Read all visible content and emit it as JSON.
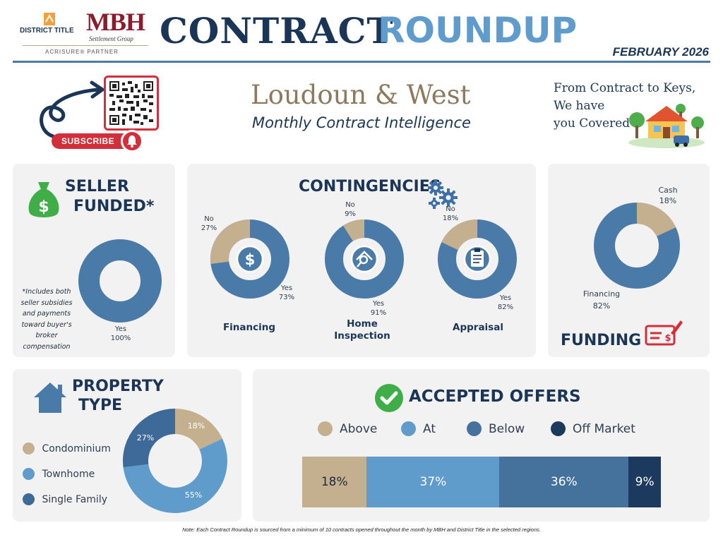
{
  "header": {
    "brand1": "DISTRICT TITLE",
    "brand2": "MBH",
    "brand2_sub": "Settlement Group",
    "partner": "ACRISURE® PARTNER",
    "title_left": "CONTRACT",
    "title_right": "ROUNDUP",
    "month": "FEBRUARY 2026"
  },
  "intro": {
    "subscribe": "SUBSCRIBE",
    "region": "Loudoun & West",
    "subtitle": "Monthly Contract Intelligence",
    "tagline": [
      "From Contract to Keys,",
      "We have",
      "you Covered"
    ]
  },
  "seller_funded": {
    "title1": "SELLER",
    "title2": "FUNDED*",
    "footnote": [
      "*Includes both",
      "seller subsidies",
      "and payments",
      "toward buyer's",
      "broker",
      "compensation"
    ],
    "label": "Yes",
    "value": "100%"
  },
  "contingencies": {
    "title": "CONTINGENCIES",
    "items": [
      {
        "name": "Financing",
        "no_label": "No",
        "no_value": "27%",
        "yes_label": "Yes",
        "yes_value": "73%",
        "no": 27
      },
      {
        "name": "Home",
        "name2": "Inspection",
        "no_label": "No",
        "no_value": "9%",
        "yes_label": "Yes",
        "yes_value": "91%",
        "no": 9
      },
      {
        "name": "Appraisal",
        "no_label": "No",
        "no_value": "18%",
        "yes_label": "Yes",
        "yes_value": "82%",
        "no": 18
      }
    ]
  },
  "funding": {
    "title": "FUNDING",
    "cash_label": "Cash",
    "cash_value": "18%",
    "fin_label": "Financing",
    "fin_value": "82%",
    "cash": 18
  },
  "property": {
    "title1": "PROPERTY",
    "title2": "TYPE",
    "legend": [
      "Condominium",
      "Townhome",
      "Single Family"
    ],
    "values": [
      "18%",
      "55%",
      "27%"
    ]
  },
  "offers": {
    "title": "ACCEPTED OFFERS",
    "legend": [
      "Above",
      "At",
      "Below",
      "Off Market"
    ],
    "values": [
      "18%",
      "37%",
      "36%",
      "9%"
    ]
  },
  "note": "Note: Each Contract Roundup is sourced from a minimum of 10 contracts opened throughout the month by MBH and District Title in the selected regions.",
  "chart_data": [
    {
      "type": "pie",
      "title": "SELLER FUNDED*",
      "categories": [
        "Yes"
      ],
      "values": [
        100
      ]
    },
    {
      "type": "pie",
      "title": "Financing",
      "categories": [
        "No",
        "Yes"
      ],
      "values": [
        27,
        73
      ]
    },
    {
      "type": "pie",
      "title": "Home Inspection",
      "categories": [
        "No",
        "Yes"
      ],
      "values": [
        9,
        91
      ]
    },
    {
      "type": "pie",
      "title": "Appraisal",
      "categories": [
        "No",
        "Yes"
      ],
      "values": [
        18,
        82
      ]
    },
    {
      "type": "pie",
      "title": "FUNDING",
      "categories": [
        "Cash",
        "Financing"
      ],
      "values": [
        18,
        82
      ]
    },
    {
      "type": "pie",
      "title": "PROPERTY TYPE",
      "categories": [
        "Condominium",
        "Townhome",
        "Single Family"
      ],
      "values": [
        18,
        55,
        27
      ]
    },
    {
      "type": "bar",
      "title": "ACCEPTED OFFERS",
      "categories": [
        "Above",
        "At",
        "Below",
        "Off Market"
      ],
      "values": [
        18,
        37,
        36,
        9
      ]
    }
  ],
  "colors": {
    "navy": "#1b3556",
    "tan": "#c4b08f",
    "steel": "#4a7aa8",
    "light_blue": "#5f9bcb",
    "dark_blue": "#45729d",
    "deep_navy": "#1c3a5e",
    "green": "#3fae49",
    "red": "#d32f3a"
  }
}
